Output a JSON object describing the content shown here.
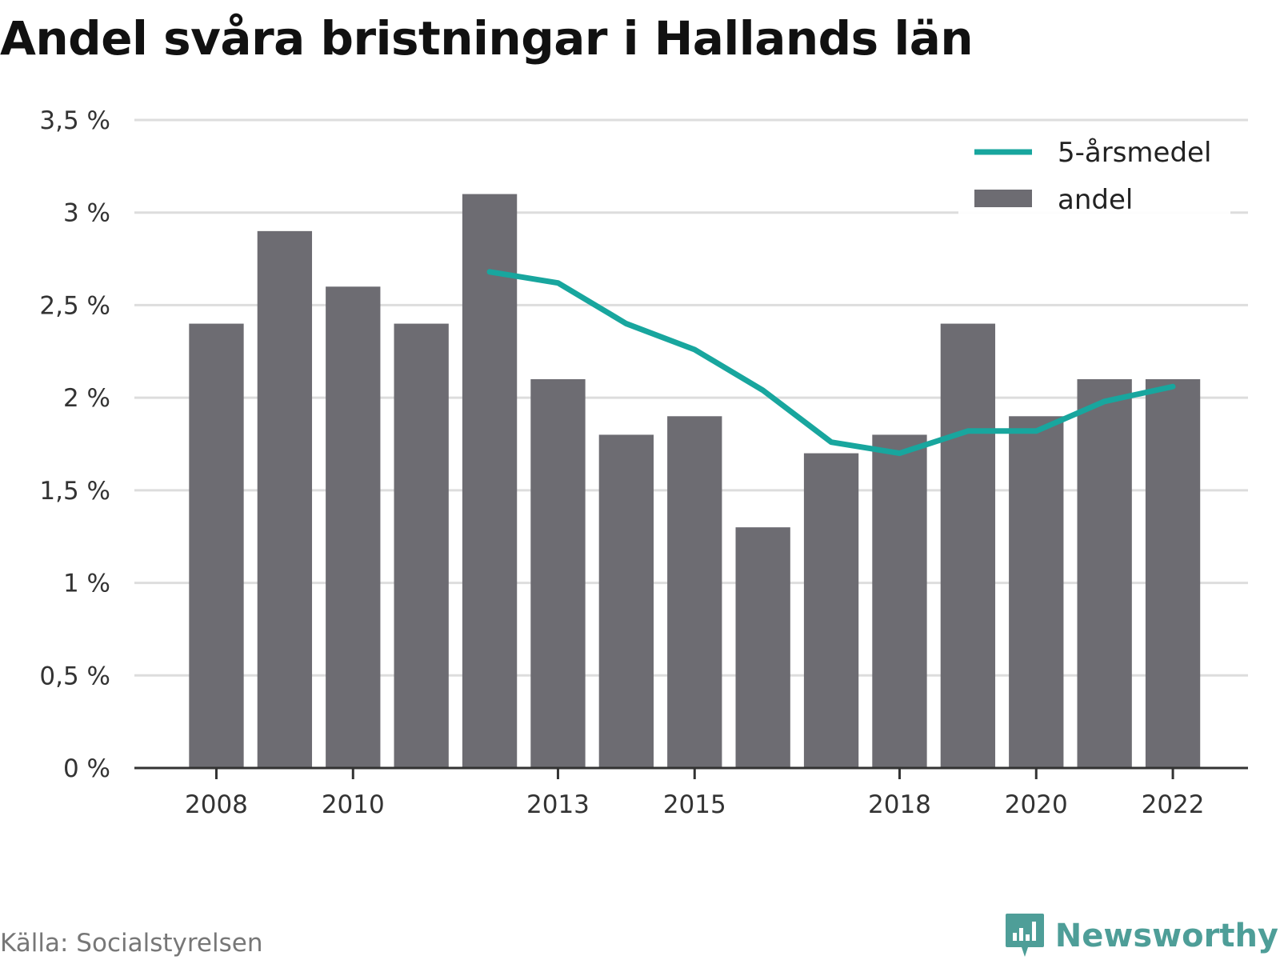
{
  "title": "Andel svåra bristningar i Hallands län",
  "source": "Källa: Socialstyrelsen",
  "brand": {
    "name": "Newsworthy",
    "icon": "bar-chart-speech-bubble-icon"
  },
  "colors": {
    "bar": "#6d6c72",
    "line": "#18a69e",
    "grid": "#dddddd",
    "axis": "#333333",
    "brand": "#4e9e98"
  },
  "chart_data": {
    "type": "bar",
    "x": [
      2008,
      2009,
      2010,
      2011,
      2012,
      2013,
      2014,
      2015,
      2016,
      2017,
      2018,
      2019,
      2020,
      2021,
      2022
    ],
    "xticks": [
      "2008",
      "2010",
      "2013",
      "2015",
      "2018",
      "2020",
      "2022"
    ],
    "yticks": [
      "0 %",
      "0,5 %",
      "1 %",
      "1,5 %",
      "2 %",
      "2,5 %",
      "3 %",
      "3,5 %"
    ],
    "ylim": [
      0,
      3.5
    ],
    "grid": true,
    "legend_position": "top-right",
    "series": [
      {
        "name": "andel",
        "type": "bar",
        "values": [
          2.4,
          2.9,
          2.6,
          2.4,
          3.1,
          2.1,
          1.8,
          1.9,
          1.3,
          1.7,
          1.8,
          2.4,
          1.9,
          2.1,
          2.1
        ]
      },
      {
        "name": "5-årsmedel",
        "type": "line",
        "values": [
          null,
          null,
          null,
          null,
          2.68,
          2.62,
          2.4,
          2.26,
          2.04,
          1.76,
          1.7,
          1.82,
          1.82,
          1.98,
          2.06
        ]
      }
    ]
  }
}
